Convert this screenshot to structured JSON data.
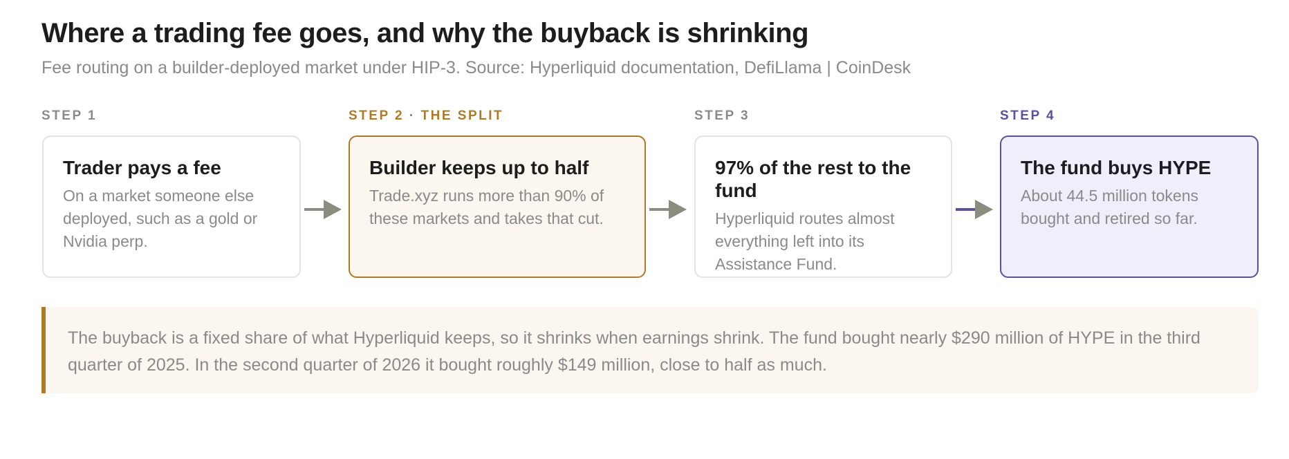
{
  "header": {
    "title": "Where a trading fee goes, and why the buyback is shrinking",
    "subtitle": "Fee routing on a builder-deployed market under HIP-3. Source: Hyperliquid documentation, DefiLlama | CoinDesk"
  },
  "steps": [
    {
      "label": "STEP 1",
      "title": "Trader pays a fee",
      "body": "On a market someone else deployed, such as a gold or Nvidia perp."
    },
    {
      "label": "STEP 2 · THE SPLIT",
      "title": "Builder keeps up to half",
      "body": "Trade.xyz runs more than 90% of these markets and takes that cut."
    },
    {
      "label": "STEP 3",
      "title": "97% of the rest to the fund",
      "body": "Hyperliquid routes almost everything left into its Assistance Fund."
    },
    {
      "label": "STEP 4",
      "title": "The fund buys HYPE",
      "body": "About 44.5 million tokens bought and retired so far."
    }
  ],
  "note": "The buyback is a fixed share of what Hyperliquid keeps, so it shrinks when earnings shrink. The fund bought nearly $290 million of HYPE in the third quarter of 2025. In the second quarter of 2026 it bought roughly $149 million, close to half as much."
}
